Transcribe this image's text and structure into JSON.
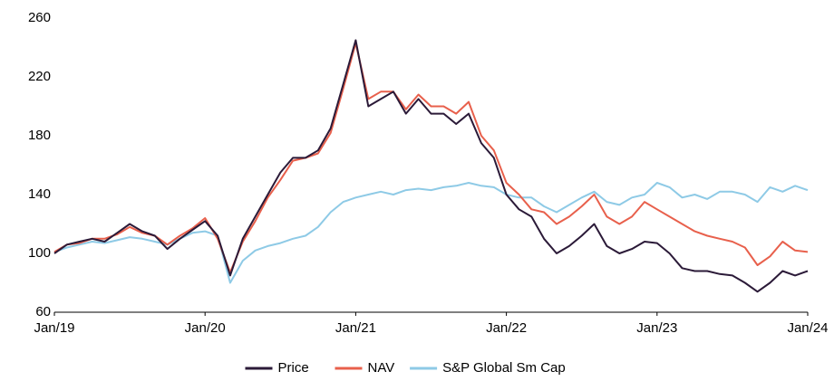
{
  "chart_data": {
    "type": "line",
    "x": [
      "2019-01",
      "2019-02",
      "2019-03",
      "2019-04",
      "2019-05",
      "2019-06",
      "2019-07",
      "2019-08",
      "2019-09",
      "2019-10",
      "2019-11",
      "2019-12",
      "2020-01",
      "2020-02",
      "2020-03",
      "2020-04",
      "2020-05",
      "2020-06",
      "2020-07",
      "2020-08",
      "2020-09",
      "2020-10",
      "2020-11",
      "2020-12",
      "2021-01",
      "2021-02",
      "2021-03",
      "2021-04",
      "2021-05",
      "2021-06",
      "2021-07",
      "2021-08",
      "2021-09",
      "2021-10",
      "2021-11",
      "2021-12",
      "2022-01",
      "2022-02",
      "2022-03",
      "2022-04",
      "2022-05",
      "2022-06",
      "2022-07",
      "2022-08",
      "2022-09",
      "2022-10",
      "2022-11",
      "2022-12",
      "2023-01",
      "2023-02",
      "2023-03",
      "2023-04",
      "2023-05",
      "2023-06",
      "2023-07",
      "2023-08",
      "2023-09",
      "2023-10",
      "2023-11",
      "2023-12",
      "2024-01"
    ],
    "series": [
      {
        "name": "Price",
        "color": "#2b1a38",
        "values": [
          100,
          106,
          108,
          110,
          108,
          114,
          120,
          115,
          112,
          103,
          110,
          116,
          122,
          112,
          85,
          110,
          125,
          140,
          155,
          165,
          165,
          170,
          185,
          215,
          245,
          200,
          205,
          210,
          195,
          205,
          195,
          195,
          188,
          195,
          175,
          165,
          140,
          130,
          125,
          110,
          100,
          105,
          112,
          120,
          105,
          100,
          103,
          108,
          107,
          100,
          90,
          88,
          88,
          86,
          85,
          80,
          74,
          80,
          88,
          85,
          88
        ]
      },
      {
        "name": "NAV",
        "color": "#e8604c",
        "values": [
          101,
          106,
          107,
          110,
          110,
          113,
          118,
          114,
          112,
          106,
          112,
          117,
          124,
          110,
          87,
          108,
          122,
          138,
          150,
          163,
          165,
          168,
          182,
          212,
          243,
          205,
          210,
          210,
          198,
          208,
          200,
          200,
          195,
          203,
          180,
          170,
          148,
          140,
          130,
          128,
          120,
          125,
          132,
          140,
          125,
          120,
          125,
          135,
          130,
          125,
          120,
          115,
          112,
          110,
          108,
          104,
          92,
          98,
          108,
          102,
          101
        ]
      },
      {
        "name": "S&P Global Sm Cap",
        "color": "#8ecae6",
        "values": [
          101,
          104,
          106,
          108,
          107,
          109,
          111,
          110,
          108,
          106,
          110,
          114,
          115,
          112,
          80,
          95,
          102,
          105,
          107,
          110,
          112,
          118,
          128,
          135,
          138,
          140,
          142,
          140,
          143,
          144,
          143,
          145,
          146,
          148,
          146,
          145,
          140,
          138,
          138,
          132,
          128,
          133,
          138,
          142,
          135,
          133,
          138,
          140,
          148,
          145,
          138,
          140,
          137,
          142,
          142,
          140,
          135,
          145,
          142,
          146,
          143
        ]
      }
    ],
    "ylim": [
      60,
      260
    ],
    "yticks": [
      60,
      100,
      140,
      180,
      220,
      260
    ],
    "xlim": [
      "2019-01",
      "2024-01"
    ],
    "xticks": [
      {
        "value": "2019-01",
        "label": "Jan/19"
      },
      {
        "value": "2020-01",
        "label": "Jan/20"
      },
      {
        "value": "2021-01",
        "label": "Jan/21"
      },
      {
        "value": "2022-01",
        "label": "Jan/22"
      },
      {
        "value": "2023-01",
        "label": "Jan/23"
      },
      {
        "value": "2024-01",
        "label": "Jan/24"
      }
    ],
    "legend": "bottom",
    "grid": false
  }
}
